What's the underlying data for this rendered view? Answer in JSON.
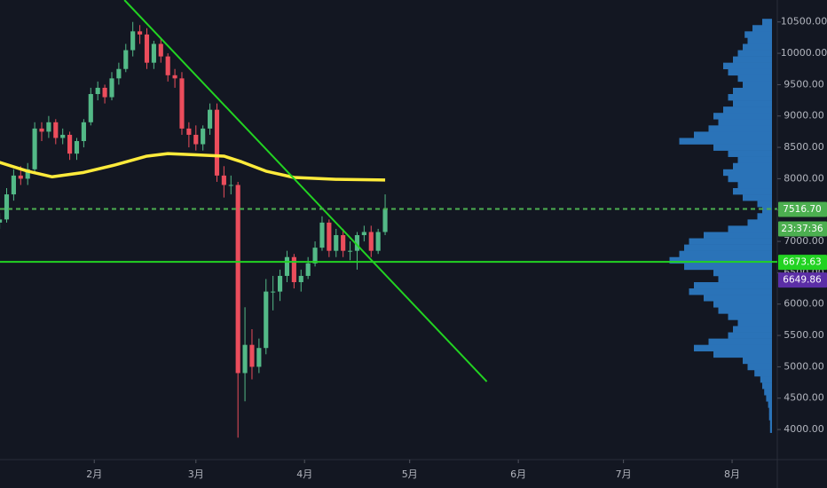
{
  "chart_data": {
    "type": "candlestick",
    "background": "#131722",
    "up_color": "#53b987",
    "down_color": "#eb4d5c",
    "x": [
      4,
      6,
      8,
      10,
      12,
      14,
      16,
      18,
      20,
      22,
      24,
      26,
      28,
      30,
      32,
      34,
      36,
      38,
      40,
      42,
      44,
      46,
      48,
      50,
      52,
      54,
      56,
      58,
      60,
      62,
      64,
      66,
      68,
      70,
      72,
      74,
      76,
      78,
      80,
      82,
      84,
      86,
      88,
      90,
      92,
      94,
      96,
      98,
      100,
      102,
      104,
      106,
      108,
      110,
      112,
      114
    ],
    "open": [
      7300,
      7350,
      7750,
      8050,
      8000,
      8150,
      8800,
      8750,
      8900,
      8650,
      8700,
      8400,
      8600,
      8900,
      9350,
      9450,
      9300,
      9600,
      9750,
      10050,
      10350,
      10300,
      9850,
      10150,
      9950,
      9650,
      9600,
      8800,
      8700,
      8550,
      8800,
      9100,
      8050,
      7900,
      7900,
      4900,
      5350,
      5000,
      5300,
      6200,
      6200,
      6450,
      6750,
      6350,
      6450,
      6650,
      6900,
      7300,
      6850,
      7100,
      6850,
      6850,
      7100,
      7150,
      6850,
      7150
    ],
    "high": [
      7450,
      7850,
      8150,
      8200,
      8250,
      8900,
      8900,
      9000,
      8950,
      8800,
      8750,
      8650,
      8950,
      9450,
      9550,
      9500,
      9700,
      9850,
      10150,
      10500,
      10450,
      10400,
      10200,
      10250,
      10000,
      9750,
      9700,
      8900,
      8850,
      8850,
      9200,
      9200,
      8200,
      8050,
      7950,
      5950,
      5600,
      5450,
      6400,
      6450,
      6550,
      6850,
      6800,
      6550,
      6750,
      7000,
      7400,
      7350,
      7200,
      7200,
      7000,
      7150,
      7250,
      7250,
      7200,
      7750
    ],
    "low": [
      7200,
      7300,
      7650,
      7900,
      7900,
      8100,
      8600,
      8650,
      8550,
      8550,
      8300,
      8300,
      8500,
      8850,
      9250,
      9200,
      9250,
      9500,
      9700,
      9950,
      10150,
      9750,
      9750,
      9850,
      9550,
      9450,
      8700,
      8500,
      8450,
      8450,
      8700,
      7950,
      7700,
      7750,
      3870,
      4450,
      4800,
      4900,
      5200,
      5900,
      6050,
      6350,
      6250,
      6200,
      6400,
      6600,
      6850,
      6750,
      6750,
      6750,
      6700,
      6550,
      7000,
      6750,
      6800,
      7100
    ],
    "close": [
      7350,
      7750,
      8050,
      8000,
      8150,
      8800,
      8750,
      8900,
      8650,
      8700,
      8400,
      8600,
      8900,
      9350,
      9450,
      9300,
      9600,
      9750,
      10050,
      10350,
      10300,
      9850,
      10150,
      9950,
      9650,
      9600,
      8800,
      8700,
      8550,
      8800,
      9100,
      8050,
      7900,
      7900,
      4900,
      5350,
      5000,
      5300,
      6200,
      6200,
      6450,
      6750,
      6350,
      6450,
      6650,
      6900,
      7300,
      6850,
      7100,
      6850,
      6850,
      7100,
      7150,
      6850,
      7150,
      7516.7
    ],
    "xlim": [
      4.1,
      225.9
    ],
    "xticks": [
      {
        "value": 31,
        "label": "2月"
      },
      {
        "value": 60,
        "label": "3月"
      },
      {
        "value": 91,
        "label": "4月"
      },
      {
        "value": 121,
        "label": "5月"
      },
      {
        "value": 152,
        "label": "6月"
      },
      {
        "value": 182,
        "label": "7月"
      },
      {
        "value": 213,
        "label": "8月"
      }
    ],
    "ylim": [
      3520,
      10850
    ],
    "yticks": [
      {
        "value": 4000,
        "label": "4000.00"
      },
      {
        "value": 4500,
        "label": "4500.00"
      },
      {
        "value": 5000,
        "label": "5000.00"
      },
      {
        "value": 5500,
        "label": "5500.00"
      },
      {
        "value": 6000,
        "label": "6000.00"
      },
      {
        "value": 6500,
        "label": "6500.00"
      },
      {
        "value": 7000,
        "label": "7000.00"
      },
      {
        "value": 7500,
        "label": "7500.00"
      },
      {
        "value": 8000,
        "label": "8000.00"
      },
      {
        "value": 8500,
        "label": "8500.00"
      },
      {
        "value": 9000,
        "label": "9000.00"
      },
      {
        "value": 9500,
        "label": "9500.00"
      },
      {
        "value": 10000,
        "label": "10000.00"
      },
      {
        "value": 10500,
        "label": "10500.00"
      }
    ],
    "moving_average": {
      "color": "#ffeb3b",
      "x": [
        4,
        12,
        19,
        28,
        37,
        46,
        52,
        60,
        68,
        73,
        80,
        88,
        100,
        114
      ],
      "values": [
        8260,
        8120,
        8030,
        8100,
        8220,
        8360,
        8400,
        8380,
        8360,
        8270,
        8120,
        8020,
        7990,
        7980
      ]
    },
    "trendline": {
      "color": "#22d322",
      "x": [
        39.6,
        143
      ],
      "values": [
        10850,
        4764
      ]
    },
    "support": {
      "color": "#22d322",
      "value": 6673.63
    },
    "last_price": {
      "value": 7516.7,
      "label": "7516.70",
      "countdown": "23:37:36",
      "color": "#4caf50"
    },
    "marker_price": {
      "value": 6649.86,
      "color": "#5b2ea6"
    },
    "volume_profile": {
      "color": "#2a73b8",
      "prices": [
        10500,
        10400,
        10300,
        10200,
        10100,
        10000,
        9900,
        9800,
        9700,
        9600,
        9500,
        9400,
        9300,
        9200,
        9100,
        9000,
        8900,
        8800,
        8700,
        8600,
        8500,
        8400,
        8300,
        8200,
        8100,
        8000,
        7900,
        7800,
        7700,
        7600,
        7500,
        7400,
        7300,
        7200,
        7100,
        7000,
        6900,
        6800,
        6700,
        6600,
        6500,
        6400,
        6300,
        6200,
        6100,
        6000,
        5900,
        5800,
        5700,
        5600,
        5500,
        5400,
        5300,
        5200,
        5100,
        5000,
        4900,
        4800,
        4700,
        4600,
        4500,
        4400,
        4300,
        4200,
        4100,
        4000
      ],
      "values": [
        10,
        20,
        28,
        25,
        30,
        35,
        40,
        50,
        45,
        35,
        30,
        40,
        45,
        40,
        50,
        60,
        55,
        65,
        80,
        95,
        60,
        45,
        35,
        40,
        50,
        45,
        35,
        40,
        30,
        15,
        10,
        15,
        25,
        45,
        70,
        85,
        90,
        95,
        105,
        90,
        60,
        55,
        80,
        85,
        70,
        60,
        55,
        45,
        35,
        40,
        45,
        65,
        80,
        60,
        30,
        25,
        18,
        12,
        10,
        8,
        6,
        4,
        3,
        3,
        2,
        2
      ]
    }
  }
}
